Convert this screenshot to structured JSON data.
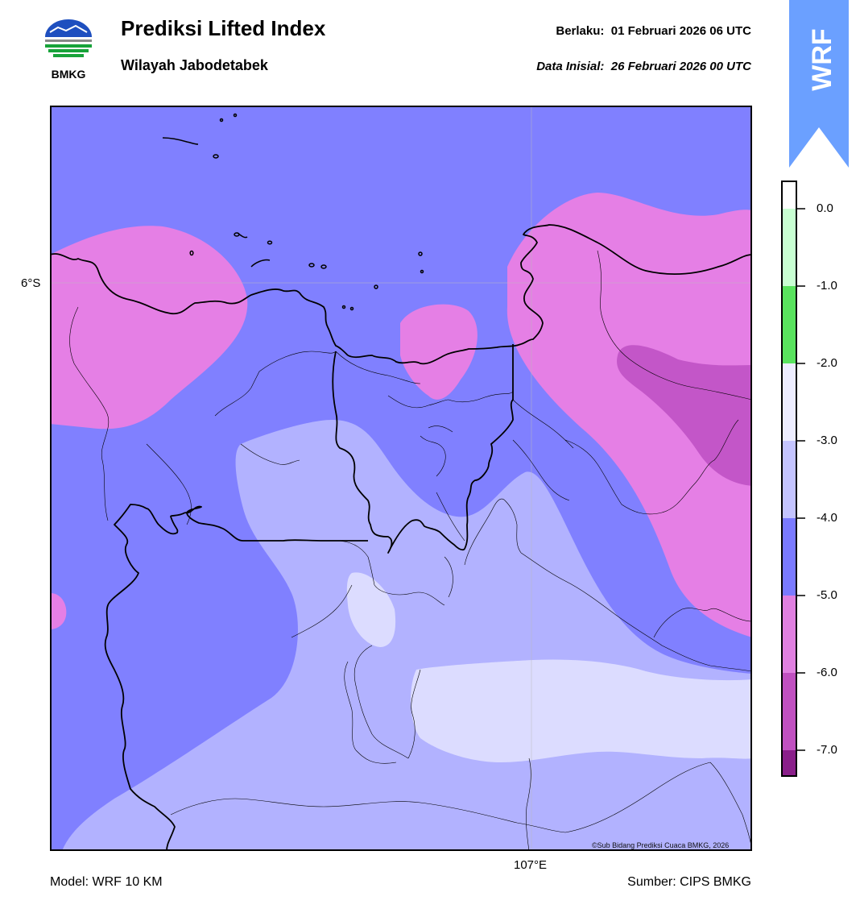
{
  "header": {
    "logo_text": "BMKG",
    "title": "Prediksi Lifted Index",
    "subtitle": "Wilayah Jabodetabek",
    "valid_label": "Berlaku:",
    "valid_value": "01 Februari 2026 06 UTC",
    "init_label": "Data Inisial:",
    "init_value": "26 Februari 2026 00 UTC"
  },
  "badge": {
    "text": "WRF",
    "color": "#6ba0ff"
  },
  "map": {
    "lat_label": "6°S",
    "lon_label": "107°E",
    "copyright": "©Sub Bidang Prediksi Cuaca BMKG, 2026",
    "colors": {
      "lt_-5": "#8080ff",
      "lt_-6": "#e57fe5",
      "lt_-7": "#c356c8",
      "lt_-4": "#b2b2ff",
      "lt_-3": "#dcdcff"
    }
  },
  "colorbar": {
    "ticks": [
      "0.0",
      "-1.0",
      "-2.0",
      "-3.0",
      "-4.0",
      "-5.0",
      "-6.0",
      "-7.0"
    ],
    "bands": [
      {
        "value": "0.0 to 0.4",
        "color": "#ffffff"
      },
      {
        "value": "-1.0 to 0.0",
        "color": "#c8ffd2"
      },
      {
        "value": "-2.0 to -1.0",
        "color": "#59e35e"
      },
      {
        "value": "-3.0 to -2.0",
        "color": "#ededff"
      },
      {
        "value": "-4.0 to -3.0",
        "color": "#c4c4ff"
      },
      {
        "value": "-5.0 to -4.0",
        "color": "#7a7aff"
      },
      {
        "value": "-6.0 to -5.0",
        "color": "#e080e0"
      },
      {
        "value": "-7.0 to -6.0",
        "color": "#c050c0"
      },
      {
        "value": "below -7.0",
        "color": "#8a1f8a"
      }
    ]
  },
  "footer": {
    "model": "Model: WRF 10 KM",
    "source": "Sumber: CIPS BMKG"
  }
}
